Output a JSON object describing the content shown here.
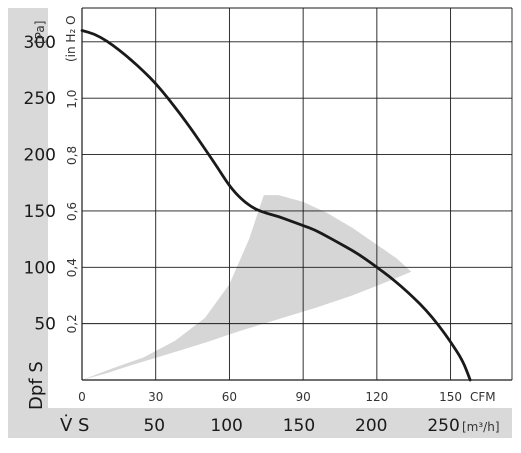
{
  "chart_data": {
    "type": "line",
    "y_pressure_label": "[Pa]",
    "y_pressure_ticks": [
      "50",
      "100",
      "150",
      "200",
      "250",
      "300"
    ],
    "y_pressure_range": [
      0,
      330
    ],
    "y_inH2O_label": "(in H₂ O",
    "y_inH2O_ticks": [
      "0,2",
      "0,4",
      "0,6",
      "0,8",
      "1,0"
    ],
    "y_axis_symbol": "Dpf S",
    "x_cfm_label": "CFM",
    "x_cfm_ticks": [
      "0",
      "30",
      "60",
      "90",
      "120",
      "150"
    ],
    "x_cfm_range": [
      0,
      175
    ],
    "x_m3h_label": "[m³/h]",
    "x_m3h_ticks": [
      "50",
      "100",
      "150",
      "200",
      "250"
    ],
    "x_axis_symbol": "V̇ S",
    "grid": true,
    "series": [
      {
        "x": [
          0,
          5,
          10,
          15,
          20,
          25,
          30,
          35,
          40,
          45,
          50,
          55,
          60,
          65,
          70,
          75,
          80,
          85,
          90,
          95,
          100,
          105,
          110,
          115,
          120,
          125,
          130,
          135,
          140,
          145,
          150,
          155,
          158
        ],
        "y": [
          310,
          307,
          301,
          293,
          284,
          274,
          263,
          250,
          236,
          221,
          205,
          189,
          172,
          160,
          152,
          148,
          145,
          141,
          137,
          133,
          127,
          121,
          115,
          108,
          100,
          92,
          83,
          73,
          62,
          49,
          34,
          17,
          0
        ],
        "color": "#1a1a1a"
      }
    ],
    "operating_area": {
      "color": "#d6d6d6",
      "x": [
        0,
        12,
        25,
        38,
        50,
        60,
        68,
        74,
        80,
        90,
        100,
        110,
        120,
        128,
        134,
        124,
        110,
        95,
        80,
        65,
        50,
        35,
        20,
        10,
        0
      ],
      "y": [
        0,
        10,
        20,
        35,
        55,
        85,
        125,
        164,
        164,
        158,
        148,
        135,
        120,
        108,
        96,
        87,
        75,
        64,
        54,
        44,
        33,
        23,
        13,
        6,
        0
      ]
    }
  }
}
